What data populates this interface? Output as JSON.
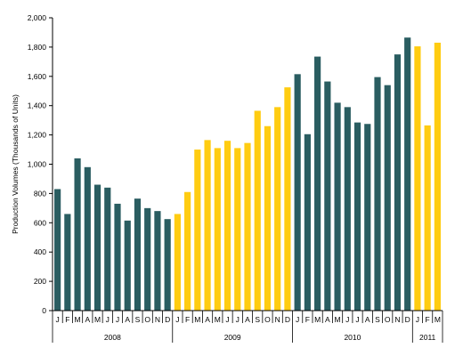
{
  "chart_data": {
    "type": "bar",
    "ylabel": "Production Volumes (Thousands of Units)",
    "xlabel": "",
    "ylim": [
      0,
      2000
    ],
    "y_ticks": [
      "0",
      "200",
      "400",
      "600",
      "800",
      "1,000",
      "1,200",
      "1,400",
      "1,600",
      "1,800",
      "2,000"
    ],
    "grid": false,
    "legend": "none",
    "colors": {
      "teal": "#2a5d61",
      "gold": "#ffcc11"
    },
    "categories": [
      "J",
      "F",
      "M",
      "A",
      "M",
      "J",
      "J",
      "A",
      "S",
      "O",
      "N",
      "D",
      "J",
      "F",
      "M",
      "A",
      "M",
      "J",
      "J",
      "A",
      "S",
      "O",
      "N",
      "D",
      "J",
      "F",
      "M",
      "A",
      "M",
      "J",
      "J",
      "A",
      "S",
      "O",
      "N",
      "D",
      "J",
      "F",
      "M"
    ],
    "years": [
      {
        "label": "2008",
        "count": 12
      },
      {
        "label": "2009",
        "count": 12
      },
      {
        "label": "2010",
        "count": 12
      },
      {
        "label": "2011",
        "count": 3
      }
    ],
    "values": [
      830,
      660,
      1040,
      980,
      860,
      840,
      730,
      615,
      765,
      700,
      680,
      625,
      660,
      810,
      1100,
      1165,
      1110,
      1160,
      1110,
      1145,
      1365,
      1260,
      1390,
      1525,
      1615,
      1205,
      1735,
      1565,
      1420,
      1390,
      1285,
      1275,
      1595,
      1540,
      1750,
      1865,
      1805,
      1265,
      1830
    ],
    "bar_colors": [
      "teal",
      "teal",
      "teal",
      "teal",
      "teal",
      "teal",
      "teal",
      "teal",
      "teal",
      "teal",
      "teal",
      "teal",
      "gold",
      "gold",
      "gold",
      "gold",
      "gold",
      "gold",
      "gold",
      "gold",
      "gold",
      "gold",
      "gold",
      "gold",
      "teal",
      "teal",
      "teal",
      "teal",
      "teal",
      "teal",
      "teal",
      "teal",
      "teal",
      "teal",
      "teal",
      "teal",
      "gold",
      "gold",
      "gold"
    ]
  }
}
